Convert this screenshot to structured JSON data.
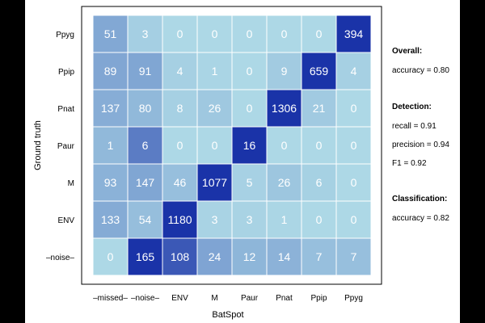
{
  "chart_data": {
    "type": "heatmap",
    "title": "",
    "xlabel": "BatSpot",
    "ylabel": "Ground truth",
    "x_categories": [
      "–missed–",
      "–noise–",
      "ENV",
      "M",
      "Paur",
      "Pnat",
      "Ppip",
      "Ppyg"
    ],
    "y_categories": [
      "Ppyg",
      "Ppip",
      "Pnat",
      "Paur",
      "M",
      "ENV",
      "–noise–"
    ],
    "values": [
      [
        51,
        3,
        0,
        0,
        0,
        0,
        0,
        394
      ],
      [
        89,
        91,
        4,
        1,
        0,
        9,
        659,
        4
      ],
      [
        137,
        80,
        8,
        26,
        0,
        1306,
        21,
        0
      ],
      [
        1,
        6,
        0,
        0,
        16,
        0,
        0,
        0
      ],
      [
        93,
        147,
        46,
        1077,
        5,
        26,
        6,
        0
      ],
      [
        133,
        54,
        1180,
        3,
        3,
        1,
        0,
        0
      ],
      [
        0,
        165,
        108,
        24,
        12,
        14,
        7,
        7
      ]
    ],
    "color_scale": {
      "low": "#add8e6",
      "high": "#1a33a8",
      "text": "#ffffff"
    },
    "grid": true,
    "legend": "none"
  },
  "stats": {
    "overall_title": "Overall:",
    "overall_accuracy": "accuracy = 0.80",
    "detection_title": "Detection:",
    "recall": "recall = 0.91",
    "precision": "precision = 0.94",
    "f1": "F1 = 0.92",
    "classification_title": "Classification:",
    "classification_accuracy": "accuracy = 0.82"
  },
  "colors": {
    "background": "#000000",
    "panel": "#ffffff",
    "grid_line": "#ffffff",
    "frame": "#000000"
  }
}
